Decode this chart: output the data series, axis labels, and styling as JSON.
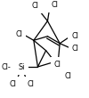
{
  "bg_color": "#ffffff",
  "line_color": "#000000",
  "text_color": "#000000",
  "font_size": 5.8,
  "lw": 0.9,
  "figsize": [
    1.0,
    1.1
  ],
  "dpi": 100,
  "xlim": [
    0.0,
    1.0
  ],
  "ylim": [
    0.12,
    1.0
  ]
}
